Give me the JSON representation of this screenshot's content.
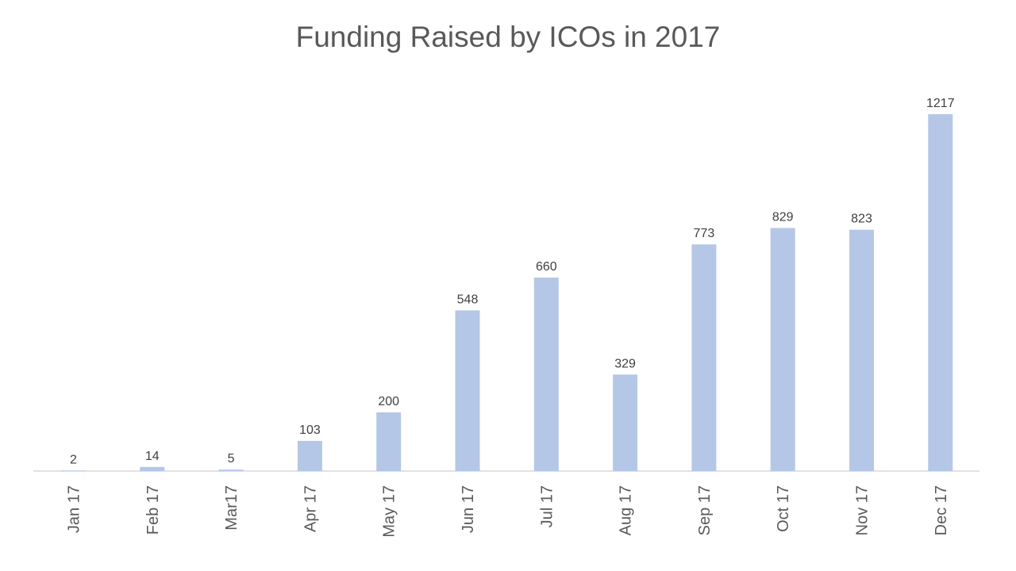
{
  "chart_data": {
    "type": "bar",
    "title": "Funding Raised by ICOs in 2017",
    "xlabel": "",
    "ylabel": "",
    "categories": [
      "Jan 17",
      "Feb 17",
      "Mar17",
      "Apr 17",
      "May 17",
      "Jun 17",
      "Jul 17",
      "Aug 17",
      "Sep 17",
      "Oct 17",
      "Nov 17",
      "Dec 17"
    ],
    "values": [
      2,
      14,
      5,
      103,
      200,
      548,
      660,
      329,
      773,
      829,
      823,
      1217
    ],
    "data_labels": [
      "2",
      "14",
      "5",
      "103",
      "200",
      "548",
      "660",
      "329",
      "773",
      "829",
      "823",
      "1217"
    ],
    "ylim": [
      0,
      1217
    ],
    "grid": false,
    "legend": "none",
    "bar_color": "#b4c7e7",
    "axis_color": "#d9d9d9"
  }
}
